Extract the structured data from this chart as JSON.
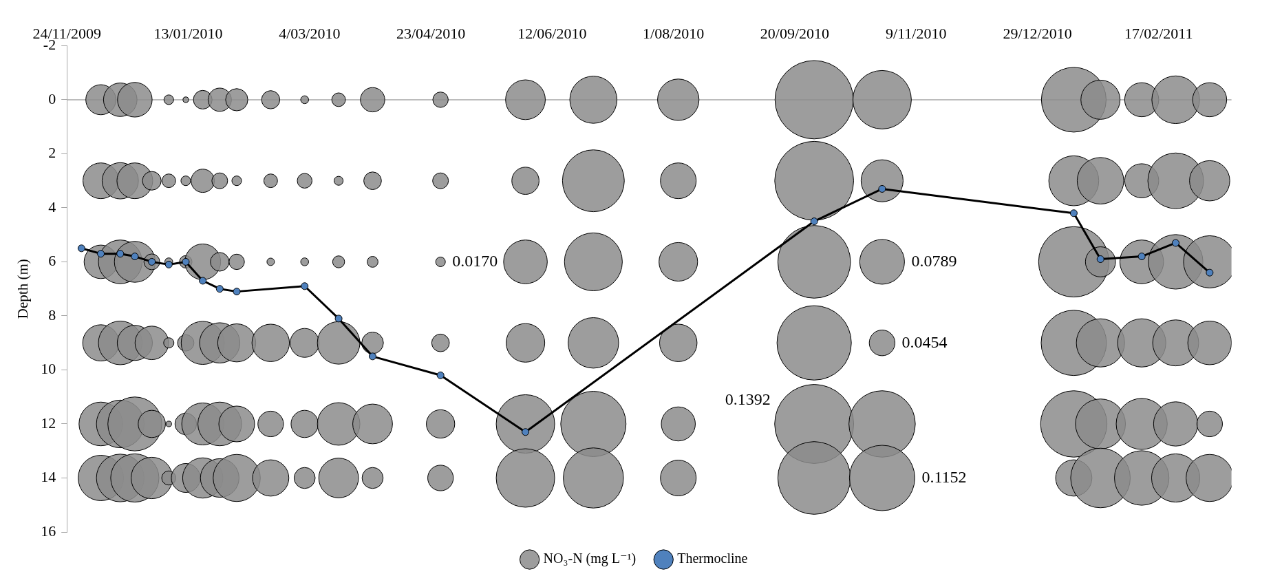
{
  "chart_data": {
    "type": "bubble",
    "ylabel": "Depth (m)",
    "xlim": [
      "2009-11-24",
      "2011-03-19"
    ],
    "xticks": [
      {
        "value": "2009-11-24",
        "label": "24/11/2009"
      },
      {
        "value": "2010-01-13",
        "label": "13/01/2010"
      },
      {
        "value": "2010-03-04",
        "label": "4/03/2010"
      },
      {
        "value": "2010-04-23",
        "label": "23/04/2010"
      },
      {
        "value": "2010-06-12",
        "label": "12/06/2010"
      },
      {
        "value": "2010-08-01",
        "label": "1/08/2010"
      },
      {
        "value": "2010-09-20",
        "label": "20/09/2010"
      },
      {
        "value": "2010-11-09",
        "label": "9/11/2010"
      },
      {
        "value": "2010-12-29",
        "label": "29/12/2010"
      },
      {
        "value": "2011-02-17",
        "label": "17/02/2011"
      }
    ],
    "ylim": [
      16,
      -2
    ],
    "yticks": [
      -2,
      0,
      2,
      4,
      6,
      8,
      10,
      12,
      14,
      16
    ],
    "legend": "bottom",
    "annotations": [
      {
        "text": "0.0170",
        "x": "2010-04-27",
        "y": 6
      },
      {
        "text": "0.0789",
        "x": "2010-10-26",
        "y": 6
      },
      {
        "text": "0.0454",
        "x": "2010-10-26",
        "y": 9
      },
      {
        "text": "0.1392",
        "x": "2010-09-28",
        "y": 12
      },
      {
        "text": "0.1152",
        "x": "2010-10-26",
        "y": 14
      }
    ],
    "ref_lines": [
      {
        "axis": "y",
        "value": 0,
        "color": "#a6a6a6"
      }
    ],
    "series": [
      {
        "name": "NO₃-N (mg L⁻¹)",
        "color": "#8c8c8c",
        "x": [
          "2009-12-08",
          "2009-12-16",
          "2009-12-22",
          "2010-01-05",
          "2010-01-12",
          "2010-01-19",
          "2010-01-26",
          "2010-02-02",
          "2010-02-16",
          "2010-03-02",
          "2010-03-16",
          "2010-03-30",
          "2010-04-27",
          "2010-06-01",
          "2010-06-29",
          "2010-08-03",
          "2010-09-28",
          "2010-10-26",
          "2011-01-13",
          "2011-01-24",
          "2011-02-10",
          "2011-02-24",
          "2011-03-10",
          "2009-12-08",
          "2009-12-16",
          "2009-12-22",
          "2009-12-29",
          "2010-01-05",
          "2010-01-12",
          "2010-01-19",
          "2010-01-26",
          "2010-02-02",
          "2010-02-16",
          "2010-03-02",
          "2010-03-16",
          "2010-03-30",
          "2010-04-27",
          "2010-06-01",
          "2010-06-29",
          "2010-08-03",
          "2010-09-28",
          "2010-10-26",
          "2011-01-13",
          "2011-01-24",
          "2011-02-10",
          "2011-02-24",
          "2011-03-10",
          "2009-12-08",
          "2009-12-16",
          "2009-12-22",
          "2009-12-29",
          "2010-01-05",
          "2010-01-12",
          "2010-01-19",
          "2010-01-26",
          "2010-02-02",
          "2010-02-16",
          "2010-03-02",
          "2010-03-16",
          "2010-03-30",
          "2010-04-27",
          "2010-06-01",
          "2010-06-29",
          "2010-08-03",
          "2010-09-28",
          "2010-10-26",
          "2011-01-13",
          "2011-01-24",
          "2011-02-10",
          "2011-02-24",
          "2011-03-10",
          "2009-12-08",
          "2009-12-16",
          "2009-12-22",
          "2009-12-29",
          "2010-01-05",
          "2010-01-12",
          "2010-01-19",
          "2010-01-26",
          "2010-02-02",
          "2010-02-16",
          "2010-03-02",
          "2010-03-16",
          "2010-03-30",
          "2010-04-27",
          "2010-06-01",
          "2010-06-29",
          "2010-08-03",
          "2010-09-28",
          "2010-10-26",
          "2011-01-13",
          "2011-01-24",
          "2011-02-10",
          "2011-02-24",
          "2011-03-10",
          "2009-12-08",
          "2009-12-16",
          "2009-12-22",
          "2009-12-29",
          "2010-01-05",
          "2010-01-12",
          "2010-01-19",
          "2010-01-26",
          "2010-02-02",
          "2010-02-16",
          "2010-03-02",
          "2010-03-16",
          "2010-03-30",
          "2010-04-27",
          "2010-06-01",
          "2010-06-29",
          "2010-08-03",
          "2010-09-28",
          "2010-10-26",
          "2011-01-13",
          "2011-01-24",
          "2011-02-10",
          "2011-02-24",
          "2011-03-10",
          "2009-12-08",
          "2009-12-16",
          "2009-12-22",
          "2009-12-29",
          "2010-01-05",
          "2010-01-12",
          "2010-01-19",
          "2010-01-26",
          "2010-02-02",
          "2010-02-16",
          "2010-03-02",
          "2010-03-16",
          "2010-03-30",
          "2010-04-27",
          "2010-06-01",
          "2010-06-29",
          "2010-08-03",
          "2010-09-28",
          "2010-10-26",
          "2011-01-13",
          "2011-01-24",
          "2011-02-10",
          "2011-02-24",
          "2011-03-10"
        ],
        "values": [
          0,
          0,
          0,
          0,
          0,
          0,
          0,
          0,
          0,
          0,
          0,
          0,
          0,
          0,
          0,
          0,
          0,
          0,
          0,
          0,
          0,
          0,
          0,
          3,
          3,
          3,
          3,
          3,
          3,
          3,
          3,
          3,
          3,
          3,
          3,
          3,
          3,
          3,
          3,
          3,
          3,
          3,
          3,
          3,
          3,
          3,
          3,
          6,
          6,
          6,
          6,
          6,
          6,
          6,
          6,
          6,
          6,
          6,
          6,
          6,
          6,
          6,
          6,
          6,
          6,
          6,
          6,
          6,
          6,
          6,
          6,
          9,
          9,
          9,
          9,
          9,
          9,
          9,
          9,
          9,
          9,
          9,
          9,
          9,
          9,
          9,
          9,
          9,
          9,
          9,
          9,
          9,
          9,
          9,
          9,
          12,
          12,
          12,
          12,
          12,
          12,
          12,
          12,
          12,
          12,
          12,
          12,
          12,
          12,
          12,
          12,
          12,
          12,
          12,
          12,
          12,
          12,
          12,
          12,
          14,
          14,
          14,
          14,
          14,
          14,
          14,
          14,
          14,
          14,
          14,
          14,
          14,
          14,
          14,
          14,
          14,
          14,
          14,
          14,
          14,
          14,
          14,
          14
        ],
        "sizes": [
          0.145,
          0.18,
          0.192,
          0.015,
          0.005,
          0.056,
          0.087,
          0.079,
          0.053,
          0.01,
          0.03,
          0.095,
          0.038,
          0.253,
          0.356,
          0.275,
          0.983,
          0.548,
          0.671,
          0.246,
          0.186,
          0.364,
          0.186,
          0.205,
          0.211,
          0.205,
          0.056,
          0.03,
          0.015,
          0.087,
          0.04,
          0.015,
          0.03,
          0.035,
          0.013,
          0.05,
          0.04,
          0.119,
          0.613,
          0.205,
          0.997,
          0.283,
          0.4,
          0.347,
          0.186,
          0.496,
          0.26,
          0.18,
          0.306,
          0.268,
          0.04,
          0.01,
          0.025,
          0.205,
          0.056,
          0.038,
          0.009,
          0.01,
          0.023,
          0.019,
          0.015,
          0.306,
          0.537,
          0.239,
          0.846,
          0.321,
          0.794,
          0.145,
          0.306,
          0.476,
          0.437,
          0.211,
          0.306,
          0.198,
          0.18,
          0.017,
          0.043,
          0.298,
          0.26,
          0.232,
          0.225,
          0.134,
          0.29,
          0.075,
          0.05,
          0.239,
          0.409,
          0.225,
          0.886,
          0.106,
          0.683,
          0.373,
          0.373,
          0.339,
          0.306,
          0.306,
          0.364,
          0.466,
          0.119,
          0.005,
          0.075,
          0.283,
          0.306,
          0.205,
          0.105,
          0.119,
          0.29,
          0.253,
          0.129,
          0.548,
          0.683,
          0.186,
          1,
          0.706,
          0.706,
          0.4,
          0.418,
          0.314,
          0.105,
          0.33,
          0.364,
          0.373,
          0.275,
          0.032,
          0.134,
          0.26,
          0.239,
          0.356,
          0.211,
          0.071,
          0.253,
          0.071,
          0.105,
          0.548,
          0.58,
          0.205,
          0.846,
          0.685,
          0.211,
          0.569,
          0.476,
          0.373,
          0.356
        ]
      },
      {
        "name": "Thermocline",
        "type": "line",
        "color": "#000000",
        "marker": "circle",
        "line_style": "solid",
        "x": [
          "2009-11-30",
          "2009-12-08",
          "2009-12-16",
          "2009-12-22",
          "2009-12-29",
          "2010-01-05",
          "2010-01-12",
          "2010-01-19",
          "2010-01-26",
          "2010-02-02",
          "2010-03-02",
          "2010-03-16",
          "2010-03-30",
          "2010-04-27",
          "2010-06-01",
          "2010-09-28",
          "2010-10-26",
          "2011-01-13",
          "2011-01-24",
          "2011-02-10",
          "2011-02-24",
          "2011-03-10"
        ],
        "values": [
          5.5,
          5.7,
          5.7,
          5.8,
          6.0,
          6.1,
          6.0,
          6.7,
          7.0,
          7.1,
          6.9,
          8.1,
          9.5,
          10.2,
          12.3,
          4.5,
          3.3,
          4.2,
          5.9,
          5.8,
          5.3,
          6.4
        ]
      }
    ]
  }
}
